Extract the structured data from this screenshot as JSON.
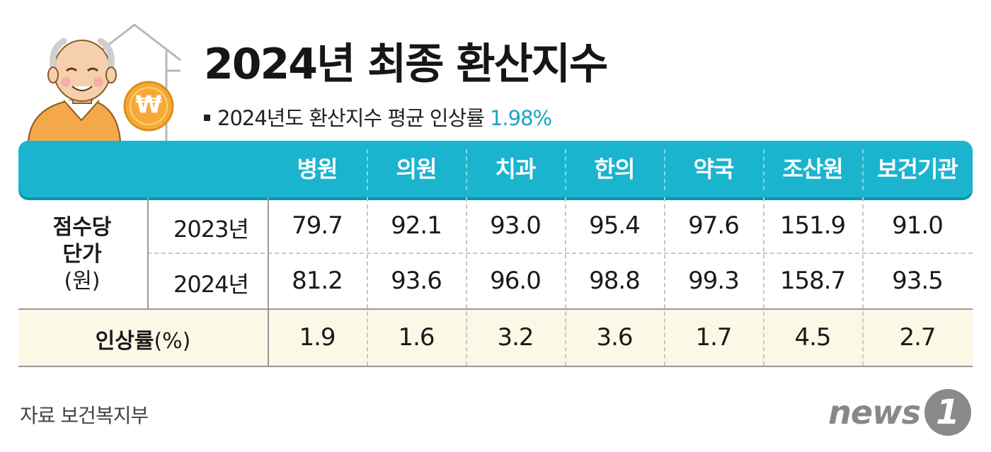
{
  "title": "2024년 최종 환산지수",
  "subtitle": {
    "text": "2024년도 환산지수 평균 인상률",
    "value": "1.98%"
  },
  "illustration": {
    "icon": "elderly-man-house-coin-illustration",
    "coin_symbol": "₩"
  },
  "table": {
    "columns": [
      "병원",
      "의원",
      "치과",
      "한의",
      "약국",
      "조산원",
      "보건기관"
    ],
    "row_group_label": [
      "점수당",
      "단가"
    ],
    "row_group_unit": "(원)",
    "rows": [
      {
        "year": "2023년",
        "values": [
          "79.7",
          "92.1",
          "93.0",
          "95.4",
          "97.6",
          "151.9",
          "91.0"
        ]
      },
      {
        "year": "2024년",
        "values": [
          "81.2",
          "93.6",
          "96.0",
          "98.8",
          "99.3",
          "158.7",
          "93.5"
        ]
      }
    ],
    "rate_label": "인상률",
    "rate_unit": "(%)",
    "rates": [
      "1.9",
      "1.6",
      "3.2",
      "3.6",
      "1.7",
      "4.5",
      "2.7"
    ]
  },
  "source": "자료 보건복지부",
  "logo": {
    "word": "news",
    "badge": "1"
  },
  "colors": {
    "accent": "#1bb4cf",
    "highlight": "#1aa3c4",
    "band": "#fbf8e6"
  }
}
